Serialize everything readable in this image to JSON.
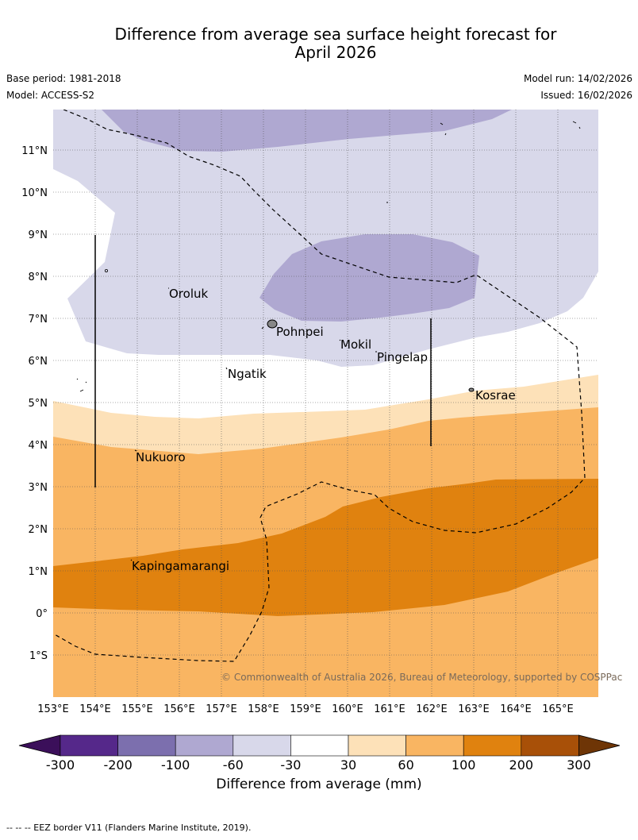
{
  "title_line1": "Difference from average sea surface height forecast for",
  "title_line2": "April 2026",
  "meta": {
    "base_period": "Base period: 1981-2018",
    "model": "Model: ACCESS-S2",
    "model_run": "Model run: 14/02/2026",
    "issued": "Issued: 16/02/2026"
  },
  "lat_labels": [
    "11°N",
    "10°N",
    "9°N",
    "8°N",
    "7°N",
    "6°N",
    "5°N",
    "4°N",
    "3°N",
    "2°N",
    "1°N",
    "0°",
    "1°S"
  ],
  "lon_labels": [
    "153°E",
    "154°E",
    "155°E",
    "156°E",
    "157°E",
    "158°E",
    "159°E",
    "160°E",
    "161°E",
    "162°E",
    "163°E",
    "164°E",
    "165°E"
  ],
  "places": {
    "oroluk": "Oroluk",
    "pohnpei": "Pohnpei",
    "mokil": "Mokil",
    "pingelap": "Pingelap",
    "ngatik": "Ngatik",
    "kosrae": "Kosrae",
    "nukuoro": "Nukuoro",
    "kapingamarangi": "Kapingamarangi"
  },
  "copyright": "© Commonwealth of Australia 2026, Bureau of Meteorology, supported by COSPPac",
  "colorbar": {
    "ticks": [
      "-300",
      "-200",
      "-100",
      "-60",
      "-30",
      "30",
      "60",
      "100",
      "200",
      "300"
    ],
    "colors": [
      "#3b0f5a",
      "#55288a",
      "#7c6fae",
      "#afa8d1",
      "#d8d8ea",
      "#ffffff",
      "#fde1b8",
      "#f9b562",
      "#e0820f",
      "#a85008",
      "#6e3506"
    ],
    "title": "Difference from average (mm)"
  },
  "footer": "--  --  -- EEZ border V11 (Flanders Marine Institute, 2019)."
}
